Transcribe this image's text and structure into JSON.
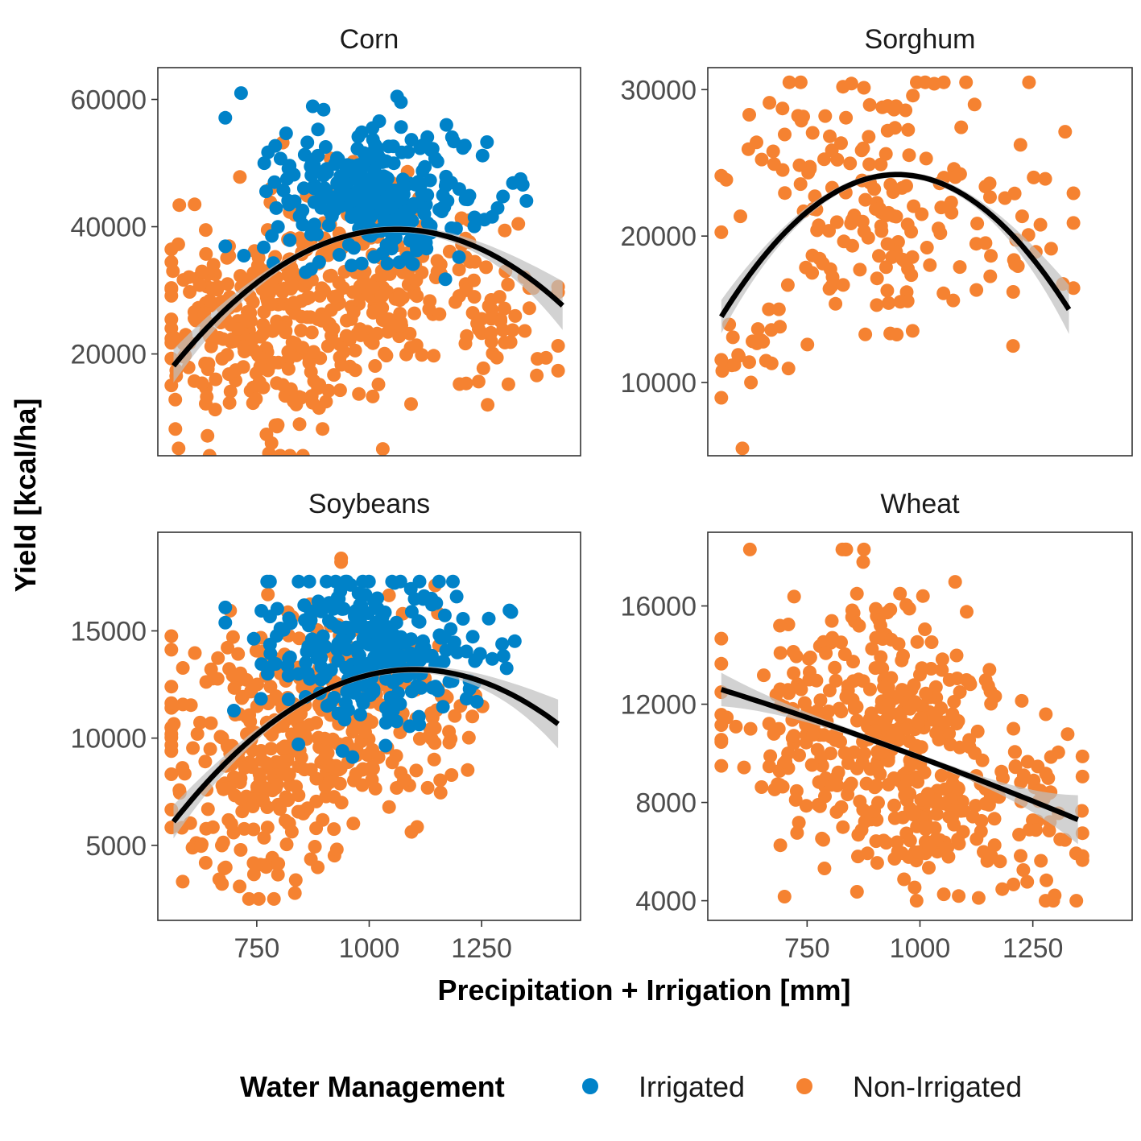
{
  "chart_data": {
    "type": "scatter",
    "xlabel": "Precipitation + Irrigation [mm]",
    "ylabel": "Yield [kcal/ha]",
    "x_ticks": [
      750,
      1000,
      1250
    ],
    "legend": {
      "title": "Water Management",
      "position": "bottom",
      "entries": [
        {
          "name": "Irrigated",
          "color": "#0082c8"
        },
        {
          "name": "Non-Irrigated",
          "color": "#f58231"
        }
      ]
    },
    "fit_line_color": "#000000",
    "confidence_band_color": "#bfbfbf",
    "panels": [
      {
        "title": "Corn",
        "xlim": [
          530,
          1470
        ],
        "ylim": [
          4000,
          65000
        ],
        "y_ticks": [
          20000,
          40000,
          60000
        ],
        "fit": {
          "type": "quadratic",
          "x_range": [
            565,
            1430
          ],
          "vertex": [
            1060,
            39600
          ],
          "a": -0.0876
        },
        "clusters": [
          {
            "series": "Non-Irrigated",
            "n": 240,
            "x_mean": 740,
            "x_sd": 120,
            "x_range": [
              560,
              1420
            ],
            "y_mean": 23000,
            "y_sd": 8000,
            "y_range": [
              4000,
              55000
            ]
          },
          {
            "series": "Non-Irrigated",
            "n": 220,
            "x_mean": 1000,
            "x_sd": 120,
            "x_range": [
              560,
              1420
            ],
            "y_mean": 31000,
            "y_sd": 7000,
            "y_range": [
              4000,
              55000
            ]
          },
          {
            "series": "Non-Irrigated",
            "n": 50,
            "x_mean": 1280,
            "x_sd": 80,
            "x_range": [
              560,
              1420
            ],
            "y_mean": 25000,
            "y_sd": 6000,
            "y_range": [
              4000,
              55000
            ]
          },
          {
            "series": "Irrigated",
            "n": 320,
            "x_mean": 1020,
            "x_sd": 130,
            "x_range": [
              680,
              1440
            ],
            "y_mean": 45500,
            "y_sd": 5500,
            "y_range": [
              11000,
              61000
            ]
          }
        ]
      },
      {
        "title": "Sorghum",
        "xlim": [
          530,
          1470
        ],
        "ylim": [
          5000,
          31500
        ],
        "y_ticks": [
          10000,
          20000,
          30000
        ],
        "fit": {
          "type": "quadratic",
          "x_range": [
            560,
            1330
          ],
          "vertex": [
            950,
            24200
          ],
          "a": -0.0638
        },
        "clusters": [
          {
            "series": "Non-Irrigated",
            "n": 170,
            "x_mean": 900,
            "x_sd": 150,
            "x_range": [
              560,
              1340
            ],
            "y_mean": 23500,
            "y_sd": 4200,
            "y_range": [
              13000,
              30500
            ]
          },
          {
            "series": "Non-Irrigated",
            "n": 25,
            "x_mean": 640,
            "x_sd": 60,
            "x_range": [
              560,
              1340
            ],
            "y_mean": 11500,
            "y_sd": 2000,
            "y_range": [
              5500,
              15000
            ]
          },
          {
            "series": "Non-Irrigated",
            "n": 15,
            "x_mean": 1260,
            "x_sd": 60,
            "x_range": [
              560,
              1340
            ],
            "y_mean": 17000,
            "y_sd": 4000,
            "y_range": [
              12500,
              24000
            ]
          }
        ]
      },
      {
        "title": "Soybeans",
        "xlim": [
          530,
          1470
        ],
        "ylim": [
          1500,
          19600
        ],
        "y_ticks": [
          5000,
          10000,
          15000
        ],
        "fit": {
          "type": "quadratic",
          "x_range": [
            565,
            1420
          ],
          "vertex": [
            1100,
            13200
          ],
          "a": -0.0248
        },
        "clusters": [
          {
            "series": "Non-Irrigated",
            "n": 260,
            "x_mean": 750,
            "x_sd": 110,
            "x_range": [
              560,
              1360
            ],
            "y_mean": 9000,
            "y_sd": 3000,
            "y_range": [
              2500,
              18800
            ]
          },
          {
            "series": "Non-Irrigated",
            "n": 200,
            "x_mean": 1000,
            "x_sd": 120,
            "x_range": [
              560,
              1360
            ],
            "y_mean": 11500,
            "y_sd": 2600,
            "y_range": [
              2500,
              18800
            ]
          },
          {
            "series": "Irrigated",
            "n": 280,
            "x_mean": 1010,
            "x_sd": 130,
            "x_range": [
              680,
              1440
            ],
            "y_mean": 14200,
            "y_sd": 1800,
            "y_range": [
              6500,
              17300
            ]
          }
        ]
      },
      {
        "title": "Wheat",
        "xlim": [
          530,
          1470
        ],
        "ylim": [
          3200,
          19000
        ],
        "y_ticks": [
          4000,
          8000,
          12000,
          16000
        ],
        "fit": {
          "type": "quadratic",
          "x_range": [
            560,
            1350
          ],
          "start": [
            560,
            12600
          ],
          "end": [
            1350,
            7300
          ]
        },
        "clusters": [
          {
            "series": "Non-Irrigated",
            "n": 330,
            "x_mean": 880,
            "x_sd": 150,
            "x_range": [
              560,
              1360
            ],
            "y_mean": 11500,
            "y_sd": 2600,
            "y_range": [
              4000,
              18300
            ]
          },
          {
            "series": "Non-Irrigated",
            "n": 120,
            "x_mean": 1030,
            "x_sd": 80,
            "x_range": [
              560,
              1360
            ],
            "y_mean": 7300,
            "y_sd": 1500,
            "y_range": [
              4000,
              18300
            ]
          },
          {
            "series": "Non-Irrigated",
            "n": 50,
            "x_mean": 1270,
            "x_sd": 60,
            "x_range": [
              560,
              1360
            ],
            "y_mean": 7500,
            "y_sd": 2000,
            "y_range": [
              4000,
              18300
            ]
          }
        ]
      }
    ]
  }
}
